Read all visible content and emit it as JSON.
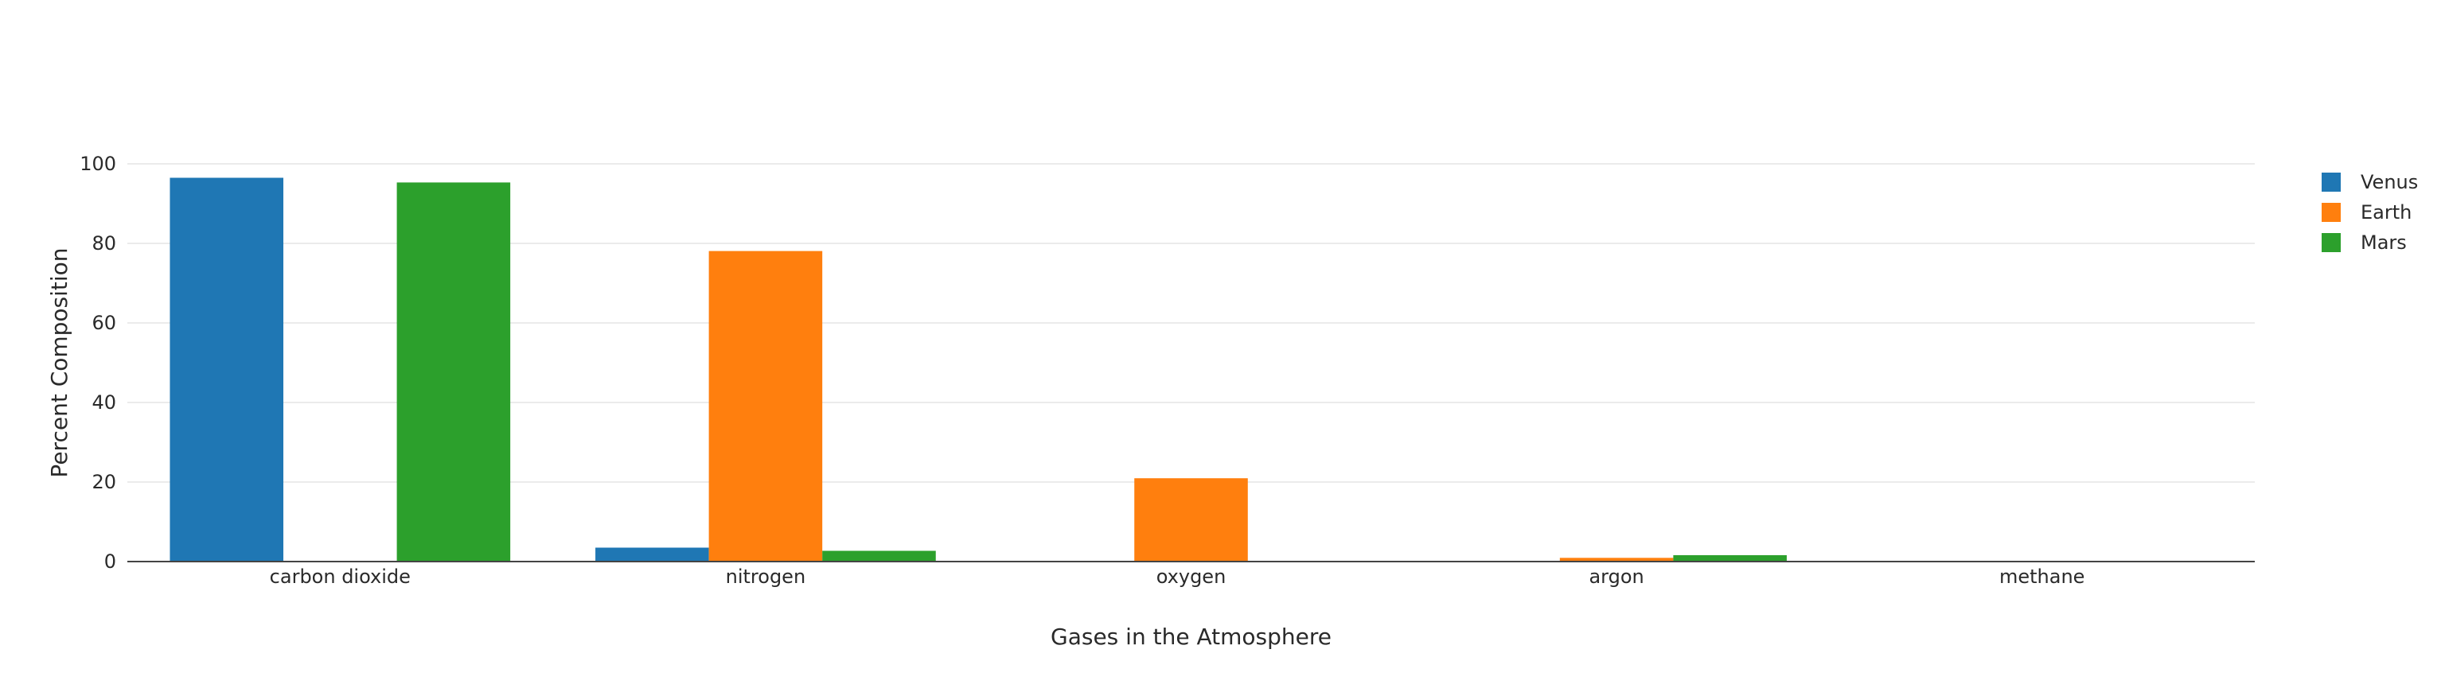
{
  "chart_data": {
    "type": "bar",
    "categories": [
      "carbon dioxide",
      "nitrogen",
      "oxygen",
      "argon",
      "methane"
    ],
    "series": [
      {
        "name": "Venus",
        "color": "#1f77b4",
        "values": [
          96.5,
          3.5,
          0,
          0.007,
          0
        ]
      },
      {
        "name": "Earth",
        "color": "#ff7f0e",
        "values": [
          0.04,
          78.08,
          20.95,
          0.93,
          0.0002
        ]
      },
      {
        "name": "Mars",
        "color": "#2ca02c",
        "values": [
          95.32,
          2.7,
          0.13,
          1.6,
          0
        ]
      }
    ],
    "xlabel": "Gases in the Atmosphere",
    "ylabel": "Percent Composition",
    "ylim": [
      0,
      100
    ],
    "yticks": [
      0,
      20,
      40,
      60,
      80,
      100
    ],
    "grid": true,
    "legend_position": "top-right"
  }
}
